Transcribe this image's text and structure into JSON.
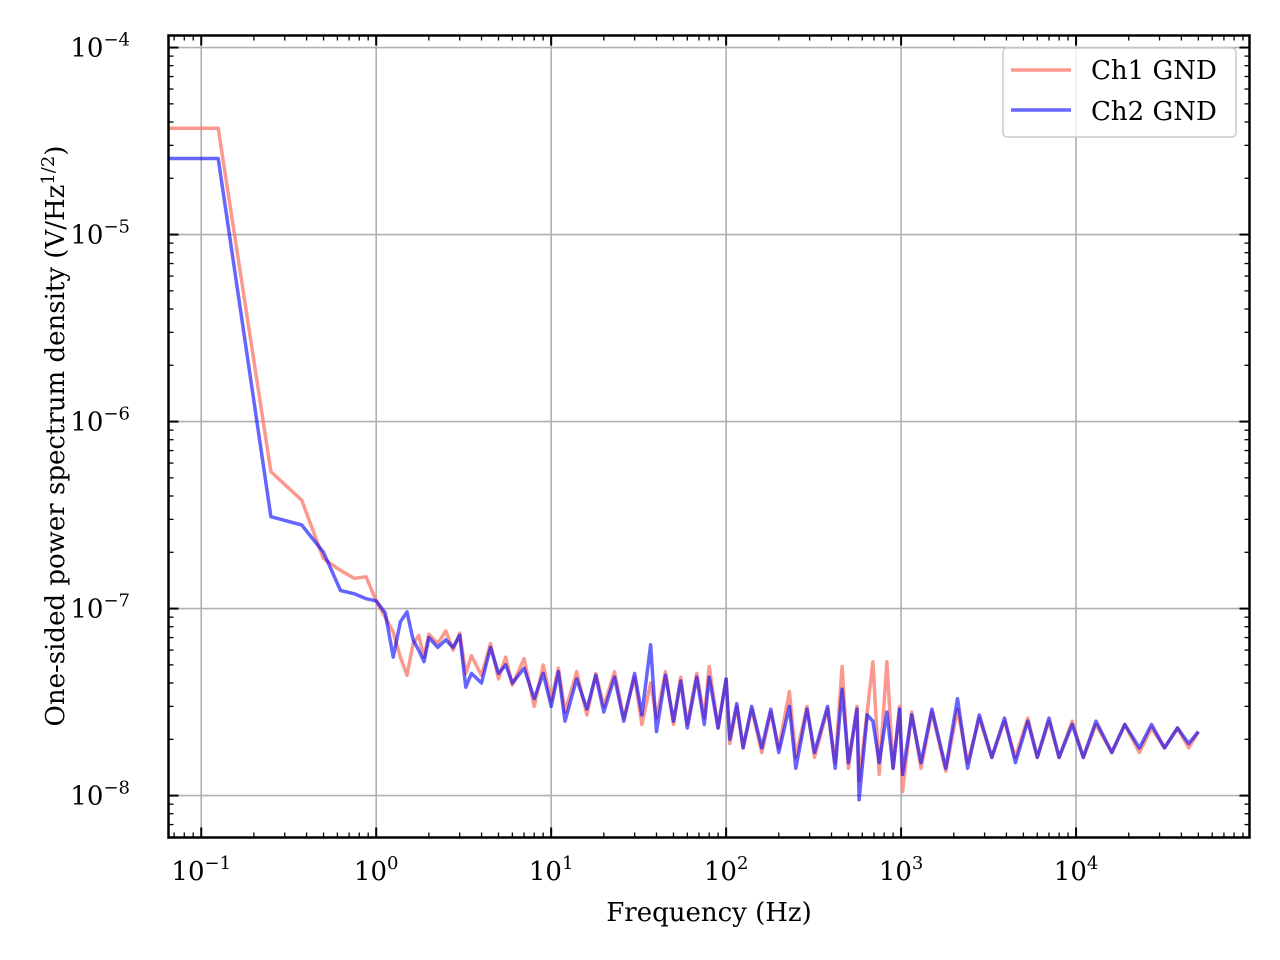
{
  "chart_data": {
    "type": "line",
    "title": "",
    "xlabel": "Frequency (Hz)",
    "ylabel": {
      "text": "One-sided power spectrum density (V/Hz",
      "sup": "1/2",
      "suffix": ")"
    },
    "xscale": "log",
    "yscale": "log",
    "xlim": [
      0.065,
      98000
    ],
    "ylim": [
      5.97e-09,
      0.000116
    ],
    "grid": true,
    "legend_position": "top-right",
    "x_ticks": [
      {
        "value": 0.1,
        "base": "10",
        "exp": "−1"
      },
      {
        "value": 1,
        "base": "10",
        "exp": "0"
      },
      {
        "value": 10,
        "base": "10",
        "exp": "1"
      },
      {
        "value": 100,
        "base": "10",
        "exp": "2"
      },
      {
        "value": 1000,
        "base": "10",
        "exp": "3"
      },
      {
        "value": 10000,
        "base": "10",
        "exp": "4"
      }
    ],
    "y_ticks": [
      {
        "value": 1e-08,
        "base": "10",
        "exp": "−8"
      },
      {
        "value": 1e-07,
        "base": "10",
        "exp": "−7"
      },
      {
        "value": 1e-06,
        "base": "10",
        "exp": "−6"
      },
      {
        "value": 1e-05,
        "base": "10",
        "exp": "−5"
      },
      {
        "value": 0.0001,
        "base": "10",
        "exp": "−4"
      }
    ],
    "x": [
      0.0625,
      0.125,
      0.25,
      0.375,
      0.5,
      0.625,
      0.75,
      0.875,
      1.0,
      1.125,
      1.25,
      1.375,
      1.5,
      1.625,
      1.75,
      1.875,
      2.0,
      2.25,
      2.5,
      2.75,
      3.0,
      3.25,
      3.5,
      4.0,
      4.5,
      5.0,
      5.5,
      6.0,
      7.0,
      8.0,
      9,
      10,
      11,
      12,
      14,
      16,
      18,
      20,
      23,
      26,
      30,
      33,
      37,
      40,
      45,
      50,
      55,
      60,
      68,
      75,
      80,
      90,
      100,
      105,
      115,
      125,
      140,
      160,
      180,
      200,
      230,
      250,
      290,
      320,
      380,
      420,
      460,
      500,
      560,
      575,
      640,
      690,
      750,
      830,
      900,
      980,
      1020,
      1150,
      1300,
      1500,
      1800,
      2100,
      2400,
      2800,
      3300,
      3900,
      4500,
      5300,
      6000,
      7000,
      8000,
      9500,
      11000,
      13000,
      16000,
      19000,
      23000,
      27000,
      32000,
      38000,
      44000,
      50000
    ],
    "series": [
      {
        "name": "Ch1 GND",
        "color": "#fa8072",
        "opacity": 0.8,
        "values": [
          3.7e-05,
          3.7e-05,
          5.4e-07,
          3.8e-07,
          1.85e-07,
          1.6e-07,
          1.45e-07,
          1.48e-07,
          1.1e-07,
          9e-08,
          7.5e-08,
          5.5e-08,
          4.4e-08,
          6.5e-08,
          7.2e-08,
          5.5e-08,
          7.3e-08,
          6.5e-08,
          7.6e-08,
          6e-08,
          7.4e-08,
          4.5e-08,
          5.6e-08,
          4.4e-08,
          6.5e-08,
          4.2e-08,
          5.5e-08,
          3.9e-08,
          5.4e-08,
          3e-08,
          5e-08,
          3.2e-08,
          4.8e-08,
          2.8e-08,
          4.6e-08,
          2.7e-08,
          4.5e-08,
          3e-08,
          4.6e-08,
          2.6e-08,
          4.3e-08,
          2.4e-08,
          4e-08,
          2.6e-08,
          4.6e-08,
          2.4e-08,
          4.3e-08,
          2.4e-08,
          4.5e-08,
          2.6e-08,
          4.9e-08,
          2.3e-08,
          4.2e-08,
          1.9e-08,
          3e-08,
          1.8e-08,
          2.9e-08,
          1.7e-08,
          2.8e-08,
          1.8e-08,
          3.6e-08,
          1.6e-08,
          3e-08,
          1.6e-08,
          2.9e-08,
          1.5e-08,
          4.9e-08,
          1.4e-08,
          3e-08,
          1.2e-08,
          2.8e-08,
          5.2e-08,
          1.3e-08,
          5.2e-08,
          1.4e-08,
          3e-08,
          1.05e-08,
          2.8e-08,
          1.4e-08,
          2.8e-08,
          1.35e-08,
          2.9e-08,
          1.5e-08,
          2.6e-08,
          1.6e-08,
          2.5e-08,
          1.6e-08,
          2.6e-08,
          1.6e-08,
          2.5e-08,
          1.6e-08,
          2.5e-08,
          1.6e-08,
          2.4e-08,
          1.7e-08,
          2.4e-08,
          1.7e-08,
          2.3e-08,
          1.8e-08,
          2.3e-08,
          1.8e-08,
          2.2e-08
        ]
      },
      {
        "name": "Ch2 GND",
        "color": "#0000ff",
        "opacity": 0.6,
        "values": [
          2.55e-05,
          2.55e-05,
          3.1e-07,
          2.8e-07,
          2e-07,
          1.25e-07,
          1.2e-07,
          1.13e-07,
          1.1e-07,
          9.5e-08,
          5.5e-08,
          8.5e-08,
          9.6e-08,
          6.8e-08,
          6e-08,
          5.2e-08,
          7e-08,
          6.2e-08,
          6.8e-08,
          6.2e-08,
          7.2e-08,
          3.8e-08,
          4.5e-08,
          4e-08,
          6.2e-08,
          4.5e-08,
          5e-08,
          4e-08,
          4.8e-08,
          3.3e-08,
          4.5e-08,
          3e-08,
          4.6e-08,
          2.5e-08,
          4.2e-08,
          2.9e-08,
          4.4e-08,
          2.8e-08,
          4.3e-08,
          2.5e-08,
          4.5e-08,
          2.7e-08,
          6.4e-08,
          2.2e-08,
          4.4e-08,
          2.5e-08,
          4.1e-08,
          2.3e-08,
          4.3e-08,
          2.4e-08,
          4.3e-08,
          2.3e-08,
          4.2e-08,
          2e-08,
          3.1e-08,
          1.8e-08,
          3e-08,
          1.8e-08,
          2.9e-08,
          1.7e-08,
          3e-08,
          1.4e-08,
          2.9e-08,
          1.7e-08,
          3e-08,
          1.4e-08,
          3.7e-08,
          1.5e-08,
          2.9e-08,
          9.5e-09,
          2.7e-08,
          2.5e-08,
          1.5e-08,
          2.8e-08,
          1.4e-08,
          2.9e-08,
          1.3e-08,
          2.7e-08,
          1.5e-08,
          2.9e-08,
          1.4e-08,
          3.3e-08,
          1.4e-08,
          2.7e-08,
          1.6e-08,
          2.6e-08,
          1.5e-08,
          2.5e-08,
          1.6e-08,
          2.6e-08,
          1.6e-08,
          2.4e-08,
          1.6e-08,
          2.5e-08,
          1.7e-08,
          2.4e-08,
          1.8e-08,
          2.4e-08,
          1.8e-08,
          2.3e-08,
          1.9e-08,
          2.2e-08
        ]
      }
    ]
  }
}
